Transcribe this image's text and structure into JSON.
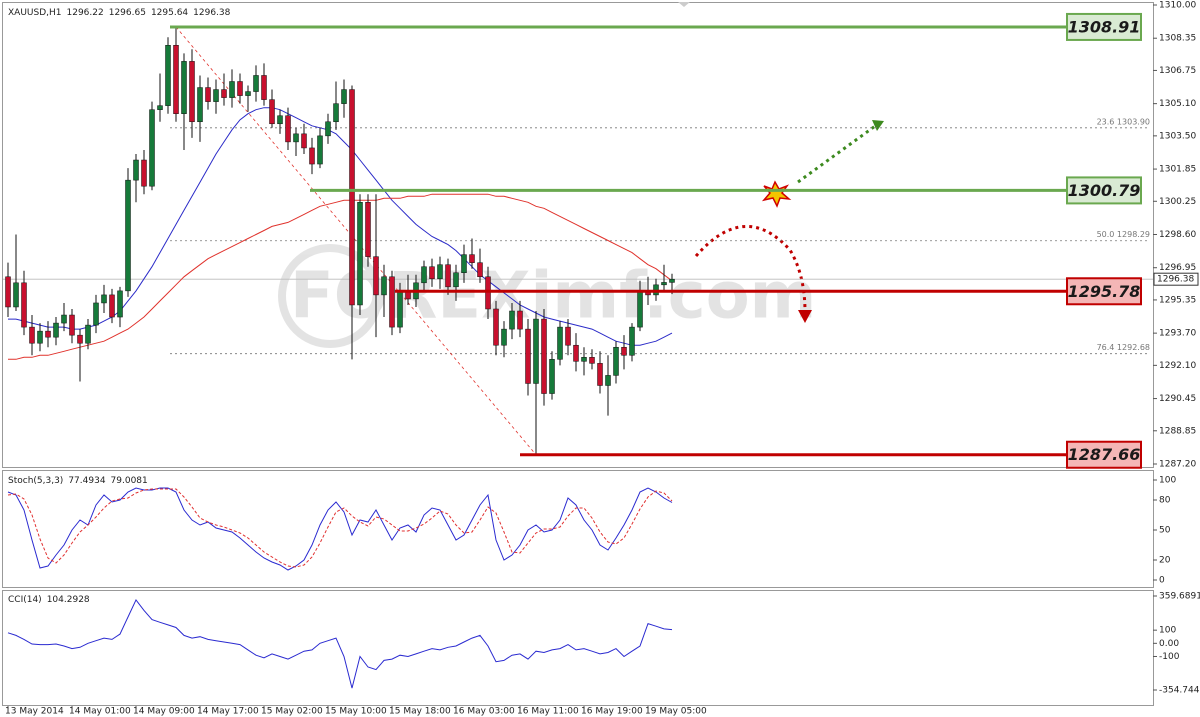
{
  "chart_data": [
    {
      "type": "candlestick",
      "symbol": "XAUUSD,H1",
      "watermark": "FOREXimf.com",
      "categories": [
        "13 May 2014",
        null,
        null,
        null,
        null,
        null,
        null,
        null,
        "14 May 01:00",
        null,
        null,
        null,
        null,
        null,
        null,
        null,
        "14 May 09:00",
        null,
        null,
        null,
        null,
        null,
        null,
        null,
        "14 May 17:00",
        null,
        null,
        null,
        null,
        null,
        null,
        null,
        "15 May 02:00",
        null,
        null,
        null,
        null,
        null,
        null,
        null,
        "15 May 10:00",
        null,
        null,
        null,
        null,
        null,
        null,
        null,
        "15 May 18:00",
        null,
        null,
        null,
        null,
        null,
        null,
        null,
        "16 May 03:00",
        null,
        null,
        null,
        null,
        null,
        null,
        null,
        "16 May 11:00",
        null,
        null,
        null,
        null,
        null,
        null,
        null,
        "16 May 19:00",
        null,
        null,
        null,
        null,
        null,
        null,
        null,
        "19 May 05:00",
        null,
        null,
        null
      ],
      "ohlc": [
        [
          1296.5,
          1297.2,
          1294.5,
          1295.0
        ],
        [
          1295.0,
          1298.6,
          1294.8,
          1296.2
        ],
        [
          1296.2,
          1296.8,
          1293.6,
          1294.0
        ],
        [
          1294.0,
          1294.6,
          1292.6,
          1293.2
        ],
        [
          1293.2,
          1294.2,
          1292.8,
          1293.8
        ],
        [
          1293.8,
          1294.3,
          1293.0,
          1293.5
        ],
        [
          1293.5,
          1294.5,
          1293.1,
          1294.2
        ],
        [
          1294.2,
          1295.2,
          1293.8,
          1294.6
        ],
        [
          1294.6,
          1294.9,
          1293.2,
          1293.6
        ],
        [
          1293.6,
          1293.9,
          1291.3,
          1293.2
        ],
        [
          1293.2,
          1294.4,
          1292.9,
          1294.1
        ],
        [
          1294.1,
          1295.6,
          1293.7,
          1295.2
        ],
        [
          1295.2,
          1296.1,
          1294.7,
          1295.6
        ],
        [
          1295.6,
          1295.9,
          1294.2,
          1294.5
        ],
        [
          1294.5,
          1296.0,
          1294.0,
          1295.8
        ],
        [
          1295.8,
          1301.9,
          1295.5,
          1301.3
        ],
        [
          1301.3,
          1302.6,
          1300.2,
          1302.3
        ],
        [
          1302.3,
          1302.8,
          1300.6,
          1301.0
        ],
        [
          1301.0,
          1305.2,
          1300.8,
          1304.8
        ],
        [
          1304.8,
          1306.6,
          1304.2,
          1305.0
        ],
        [
          1305.0,
          1308.4,
          1304.6,
          1308.0
        ],
        [
          1308.0,
          1308.91,
          1304.2,
          1304.6
        ],
        [
          1304.6,
          1307.6,
          1302.8,
          1307.2
        ],
        [
          1307.2,
          1307.8,
          1303.4,
          1304.2
        ],
        [
          1304.2,
          1306.5,
          1303.2,
          1305.9
        ],
        [
          1305.9,
          1306.4,
          1304.8,
          1305.2
        ],
        [
          1305.2,
          1306.3,
          1304.6,
          1305.8
        ],
        [
          1305.8,
          1306.6,
          1305.0,
          1305.4
        ],
        [
          1305.4,
          1306.8,
          1304.9,
          1306.2
        ],
        [
          1306.2,
          1306.6,
          1305.1,
          1305.5
        ],
        [
          1305.5,
          1306.0,
          1304.7,
          1305.7
        ],
        [
          1305.7,
          1307.0,
          1305.2,
          1306.5
        ],
        [
          1306.5,
          1307.1,
          1305.0,
          1305.3
        ],
        [
          1305.3,
          1305.8,
          1303.9,
          1304.1
        ],
        [
          1304.1,
          1304.8,
          1303.6,
          1304.5
        ],
        [
          1304.5,
          1304.9,
          1302.8,
          1303.2
        ],
        [
          1303.2,
          1303.9,
          1302.5,
          1303.6
        ],
        [
          1303.6,
          1304.1,
          1302.6,
          1302.9
        ],
        [
          1302.9,
          1303.4,
          1301.6,
          1302.1
        ],
        [
          1302.1,
          1303.9,
          1301.9,
          1303.5
        ],
        [
          1303.5,
          1304.6,
          1303.1,
          1304.2
        ],
        [
          1304.2,
          1306.2,
          1303.8,
          1305.1
        ],
        [
          1305.1,
          1306.3,
          1304.4,
          1305.8
        ],
        [
          1305.8,
          1306.0,
          1292.4,
          1295.1
        ],
        [
          1295.1,
          1300.6,
          1294.6,
          1300.2
        ],
        [
          1300.2,
          1300.6,
          1297.0,
          1297.5
        ],
        [
          1297.5,
          1300.6,
          1293.5,
          1295.6
        ],
        [
          1295.6,
          1297.1,
          1294.5,
          1296.5
        ],
        [
          1296.5,
          1296.8,
          1293.6,
          1294.0
        ],
        [
          1294.0,
          1296.2,
          1293.7,
          1295.8
        ],
        [
          1295.8,
          1296.6,
          1295.1,
          1295.4
        ],
        [
          1295.4,
          1296.6,
          1295.0,
          1296.2
        ],
        [
          1296.2,
          1297.3,
          1295.8,
          1297.0
        ],
        [
          1297.0,
          1297.4,
          1296.0,
          1296.4
        ],
        [
          1296.4,
          1297.5,
          1295.9,
          1297.1
        ],
        [
          1297.1,
          1297.4,
          1295.6,
          1296.0
        ],
        [
          1296.0,
          1297.1,
          1295.3,
          1296.7
        ],
        [
          1296.7,
          1298.1,
          1296.2,
          1297.6
        ],
        [
          1297.6,
          1298.4,
          1296.9,
          1297.2
        ],
        [
          1297.2,
          1297.9,
          1296.2,
          1296.5
        ],
        [
          1296.5,
          1297.0,
          1294.4,
          1294.9
        ],
        [
          1294.9,
          1295.3,
          1292.6,
          1293.1
        ],
        [
          1293.1,
          1294.3,
          1292.5,
          1293.9
        ],
        [
          1293.9,
          1295.2,
          1293.4,
          1294.8
        ],
        [
          1294.8,
          1295.3,
          1293.5,
          1293.9
        ],
        [
          1293.9,
          1294.4,
          1290.6,
          1291.2
        ],
        [
          1291.2,
          1294.8,
          1287.66,
          1294.4
        ],
        [
          1294.4,
          1294.9,
          1290.1,
          1290.7
        ],
        [
          1290.7,
          1292.8,
          1290.4,
          1292.4
        ],
        [
          1292.4,
          1294.3,
          1292.1,
          1294.0
        ],
        [
          1294.0,
          1294.4,
          1292.6,
          1293.1
        ],
        [
          1293.1,
          1293.7,
          1291.8,
          1292.3
        ],
        [
          1292.3,
          1293.0,
          1291.6,
          1292.5
        ],
        [
          1292.5,
          1292.9,
          1291.9,
          1292.2
        ],
        [
          1292.2,
          1292.8,
          1290.7,
          1291.1
        ],
        [
          1291.1,
          1292.6,
          1289.6,
          1291.6
        ],
        [
          1291.6,
          1293.3,
          1291.2,
          1293.0
        ],
        [
          1293.0,
          1293.6,
          1291.9,
          1292.6
        ],
        [
          1292.6,
          1294.2,
          1292.3,
          1294.0
        ],
        [
          1294.0,
          1296.3,
          1293.8,
          1295.8
        ],
        [
          1295.8,
          1296.5,
          1295.1,
          1295.6
        ],
        [
          1295.6,
          1296.4,
          1295.3,
          1296.1
        ],
        [
          1296.1,
          1297.1,
          1295.8,
          1296.22
        ],
        [
          1296.22,
          1296.65,
          1295.64,
          1296.38
        ]
      ],
      "bull_color": "#167a3a",
      "bear_color": "#c8102e",
      "series": [
        {
          "color": "#2b2bc8",
          "values": [
            1294.4,
            1294.4,
            1294.3,
            1294.2,
            1294.1,
            1294.0,
            1294.0,
            1294.0,
            1293.9,
            1293.9,
            1294.0,
            1294.1,
            1294.3,
            1294.5,
            1294.8,
            1295.3,
            1295.8,
            1296.4,
            1297.0,
            1297.7,
            1298.4,
            1299.1,
            1299.8,
            1300.5,
            1301.2,
            1301.9,
            1302.6,
            1303.2,
            1303.8,
            1304.3,
            1304.6,
            1304.8,
            1304.9,
            1304.9,
            1304.8,
            1304.6,
            1304.4,
            1304.2,
            1304.0,
            1303.9,
            1303.8,
            1303.6,
            1303.2,
            1302.8,
            1302.3,
            1301.8,
            1301.3,
            1300.8,
            1300.3,
            1299.9,
            1299.5,
            1299.1,
            1298.8,
            1298.5,
            1298.3,
            1298.1,
            1297.8,
            1297.4,
            1297.0,
            1296.6,
            1296.3,
            1296.0,
            1295.7,
            1295.4,
            1295.1,
            1294.9,
            1294.7,
            1294.5,
            1294.4,
            1294.3,
            1294.2,
            1294.1,
            1294.0,
            1293.9,
            1293.7,
            1293.5,
            1293.3,
            1293.2,
            1293.1,
            1293.1,
            1293.2,
            1293.3,
            1293.5,
            1293.7
          ]
        },
        {
          "color": "#e0322c",
          "values": [
            1292.4,
            1292.4,
            1292.5,
            1292.5,
            1292.6,
            1292.6,
            1292.7,
            1292.8,
            1292.9,
            1293.0,
            1293.1,
            1293.2,
            1293.3,
            1293.5,
            1293.7,
            1293.9,
            1294.2,
            1294.5,
            1294.9,
            1295.3,
            1295.7,
            1296.1,
            1296.5,
            1296.8,
            1297.1,
            1297.4,
            1297.6,
            1297.8,
            1298.0,
            1298.2,
            1298.4,
            1298.6,
            1298.8,
            1299.0,
            1299.1,
            1299.2,
            1299.4,
            1299.6,
            1299.8,
            1300.0,
            1300.1,
            1300.2,
            1300.3,
            1300.3,
            1300.3,
            1300.3,
            1300.3,
            1300.4,
            1300.4,
            1300.4,
            1300.5,
            1300.5,
            1300.5,
            1300.6,
            1300.6,
            1300.6,
            1300.6,
            1300.6,
            1300.6,
            1300.6,
            1300.6,
            1300.5,
            1300.5,
            1300.4,
            1300.3,
            1300.2,
            1300.0,
            1299.9,
            1299.7,
            1299.5,
            1299.3,
            1299.1,
            1298.9,
            1298.7,
            1298.5,
            1298.3,
            1298.1,
            1297.9,
            1297.7,
            1297.4,
            1297.1,
            1296.9,
            1296.6,
            1296.3
          ]
        }
      ],
      "ylim": [
        1287.2,
        1310
      ],
      "yticks": [
        {
          "value": 1310,
          "label": "1310.00"
        },
        1308.35,
        1306.75,
        {
          "value": 1305.1,
          "label": "1305.10"
        },
        {
          "value": 1303.5,
          "label": "1303.50"
        },
        1301.85,
        1300.25,
        {
          "value": 1298.6,
          "label": "1298.60"
        },
        1296.95,
        1295.35,
        {
          "value": 1293.7,
          "label": "1293.70"
        },
        {
          "value": 1292.1,
          "label": "1292.10"
        },
        1290.45,
        1288.85,
        {
          "value": 1287.2,
          "label": "1287.20"
        }
      ],
      "levels": [
        {
          "value": 1308.91,
          "color": "#6aa84f",
          "fill": "#d9ead3"
        },
        {
          "value": 1300.79,
          "color": "#6aa84f",
          "fill": "#d9ead3"
        },
        {
          "value": 1295.78,
          "color": "#c00000",
          "fill": "#f4b6b6"
        },
        {
          "value": 1287.66,
          "color": "#c00000",
          "fill": "#f4b6b6"
        }
      ],
      "fib_levels": [
        {
          "value": 1303.9,
          "label": "23.6 1303.90"
        },
        {
          "value": 1298.29,
          "label": "50.0 1298.29"
        },
        {
          "value": 1292.68,
          "label": "76.4 1292.68"
        }
      ]
    },
    {
      "type": "line",
      "title": "Stoch(5,3,3)",
      "series": [
        {
          "color": "#2a2ad0",
          "values": [
            88,
            85,
            70,
            40,
            12,
            14,
            25,
            35,
            50,
            60,
            55,
            75,
            85,
            78,
            80,
            88,
            92,
            90,
            90,
            92,
            92,
            88,
            70,
            60,
            55,
            58,
            52,
            50,
            48,
            42,
            35,
            28,
            22,
            18,
            15,
            10,
            14,
            20,
            35,
            55,
            70,
            78,
            68,
            45,
            60,
            58,
            70,
            55,
            40,
            52,
            55,
            48,
            65,
            72,
            70,
            55,
            40,
            45,
            60,
            75,
            85,
            40,
            20,
            25,
            35,
            50,
            55,
            48,
            50,
            60,
            82,
            75,
            60,
            50,
            35,
            30,
            42,
            55,
            70,
            88,
            92,
            88,
            82,
            77.4934
          ]
        },
        {
          "color": "#e03030",
          "dash": true,
          "values": [
            85,
            86,
            81,
            65,
            41,
            22,
            17,
            25,
            37,
            48,
            55,
            63,
            72,
            79,
            81,
            82,
            87,
            90,
            91,
            91,
            91,
            91,
            83,
            73,
            62,
            58,
            55,
            53,
            50,
            47,
            42,
            35,
            28,
            23,
            18,
            14,
            13,
            15,
            23,
            37,
            53,
            68,
            72,
            64,
            58,
            54,
            63,
            61,
            55,
            49,
            49,
            52,
            56,
            62,
            69,
            66,
            55,
            47,
            48,
            60,
            73,
            67,
            48,
            28,
            27,
            37,
            47,
            51,
            51,
            53,
            64,
            72,
            72,
            62,
            48,
            38,
            36,
            42,
            56,
            71,
            83,
            89,
            87,
            79.0081
          ]
        }
      ],
      "ylim": [
        0,
        100
      ],
      "yticks": [
        100,
        80,
        50,
        20,
        0
      ]
    },
    {
      "type": "line",
      "title": "CCI(14)",
      "series": [
        {
          "color": "#2a2ad0",
          "values": [
            80,
            60,
            30,
            -5,
            -10,
            -10,
            -5,
            -20,
            -40,
            -30,
            0,
            20,
            40,
            30,
            70,
            200,
            330,
            250,
            180,
            160,
            140,
            120,
            60,
            40,
            50,
            30,
            20,
            10,
            0,
            -10,
            -50,
            -90,
            -110,
            -80,
            -100,
            -120,
            -90,
            -60,
            -50,
            0,
            20,
            40,
            -100,
            -340,
            -100,
            -180,
            -200,
            -130,
            -120,
            -90,
            -100,
            -80,
            -60,
            -40,
            -50,
            -30,
            -20,
            10,
            40,
            60,
            -20,
            -140,
            -130,
            -90,
            -80,
            -120,
            -60,
            -70,
            -50,
            -40,
            -10,
            -50,
            -40,
            -60,
            -80,
            -70,
            -40,
            -100,
            -60,
            -20,
            150,
            130,
            110,
            104.2928
          ]
        }
      ],
      "ylim": [
        -354.744,
        359.6891
      ],
      "yticks": [
        359.6891,
        100,
        {
          "value": 0,
          "label": "0.00"
        },
        -100,
        -354.744
      ]
    }
  ]
}
